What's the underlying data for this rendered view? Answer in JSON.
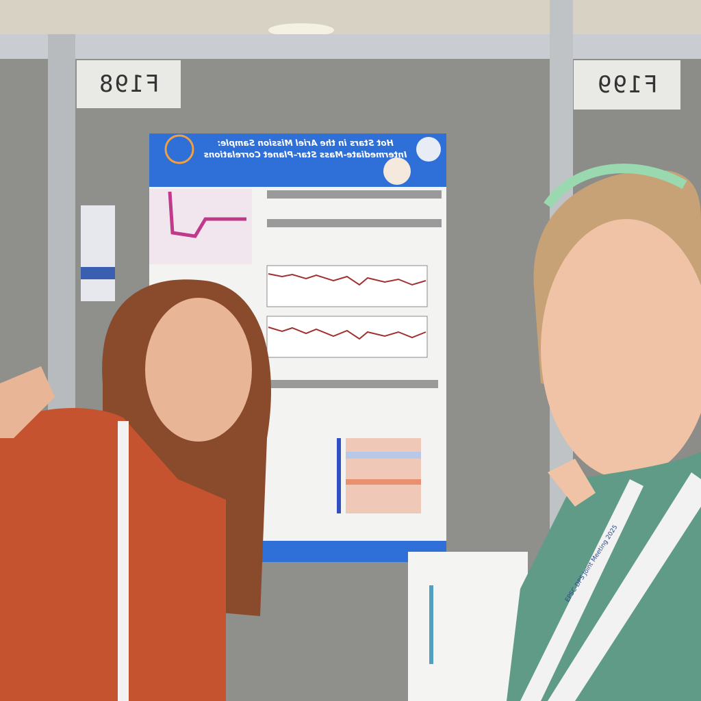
{
  "scene": {
    "booth_labels": [
      "F198",
      "F199"
    ],
    "poster": {
      "title_line1": "Hot Stars in the Ariel Mission Sample:",
      "title_line2": "Intermediate-Mass Star–Planet Correlations"
    },
    "lanyard": "EPSC-DPS Joint Meeting 2025"
  }
}
